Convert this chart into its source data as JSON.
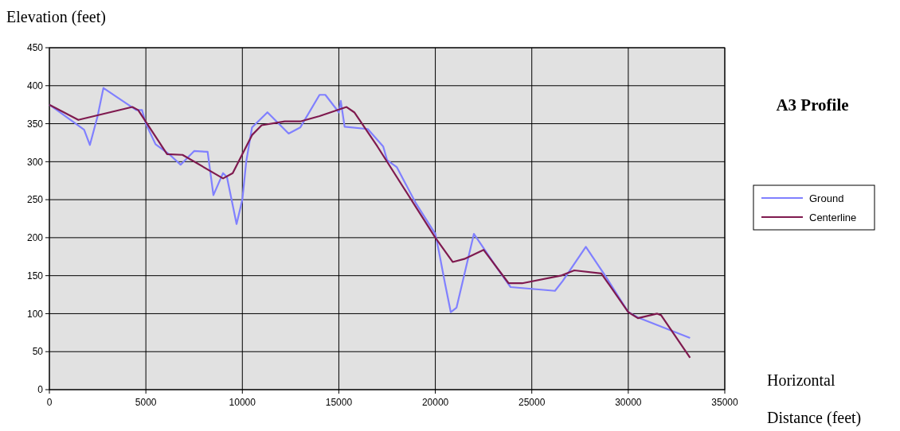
{
  "chart_data": {
    "type": "line",
    "title": "A3 Profile",
    "ylabel": "Elevation (feet)",
    "xlabel": "Horizontal Distance (feet)",
    "xlim": [
      0,
      35000
    ],
    "xticks": [
      0,
      5000,
      10000,
      15000,
      20000,
      25000,
      30000,
      35000
    ],
    "ylim": [
      0,
      450
    ],
    "yticks": [
      0,
      50,
      100,
      150,
      200,
      250,
      300,
      350,
      400,
      450
    ],
    "grid": true,
    "legend": "right",
    "series": [
      {
        "name": "Ground",
        "color": "#8080ff",
        "x": [
          0,
          1800,
          2100,
          2500,
          2800,
          3500,
          4500,
          4800,
          5000,
          5500,
          6200,
          6800,
          7500,
          8200,
          8500,
          9000,
          9200,
          9700,
          10000,
          10200,
          10500,
          11300,
          12400,
          13000,
          14000,
          14300,
          15000,
          15100,
          15300,
          16500,
          17300,
          17500,
          18000,
          19000,
          20000,
          20200,
          20500,
          20800,
          21100,
          22000,
          22400,
          23200,
          23900,
          26200,
          26600,
          27800,
          28800,
          30000,
          30500,
          33200
        ],
        "values": [
          375,
          342,
          322,
          360,
          397,
          385,
          368,
          368,
          350,
          323,
          310,
          296,
          314,
          313,
          256,
          285,
          280,
          218,
          250,
          300,
          345,
          365,
          337,
          345,
          388,
          388,
          365,
          380,
          346,
          343,
          320,
          302,
          293,
          245,
          205,
          180,
          140,
          102,
          108,
          205,
          190,
          160,
          135,
          130,
          143,
          188,
          150,
          102,
          95,
          68
        ]
      },
      {
        "name": "Centerline",
        "color": "#7f1a4f",
        "x": [
          0,
          1500,
          4300,
          4600,
          6100,
          6900,
          9000,
          9500,
          10500,
          11000,
          12200,
          13000,
          14000,
          15400,
          15800,
          17000,
          20000,
          20900,
          21500,
          22500,
          23800,
          24500,
          26500,
          27200,
          28600,
          30000,
          30500,
          31500,
          31700,
          33200
        ],
        "values": [
          375,
          355,
          372,
          368,
          310,
          309,
          278,
          285,
          335,
          348,
          353,
          353,
          360,
          372,
          365,
          320,
          200,
          168,
          172,
          184,
          140,
          140,
          150,
          157,
          153,
          102,
          94,
          100,
          98,
          42
        ]
      }
    ]
  }
}
